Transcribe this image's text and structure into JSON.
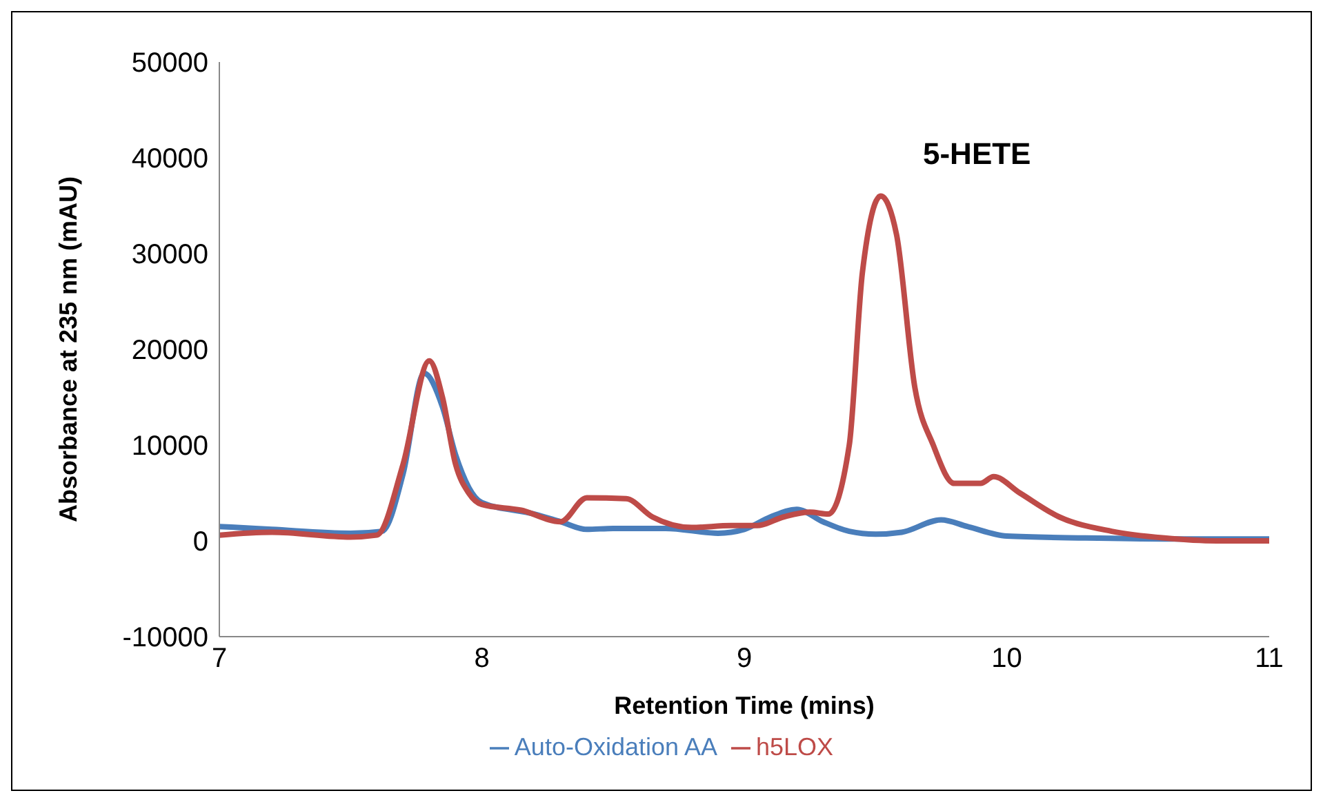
{
  "chart_data": {
    "type": "line",
    "xlabel": "Retention Time (mins)",
    "ylabel": "Absorbance at 235 nm (mAU)",
    "xlim": [
      7,
      11
    ],
    "xticks": [
      7,
      8,
      9,
      10,
      11
    ],
    "ylim": [
      -10000,
      50000
    ],
    "yticks": [
      -10000,
      0,
      10000,
      20000,
      30000,
      40000,
      50000
    ],
    "grid": false,
    "legend": "bottom",
    "marker": "none",
    "line_style": "solid",
    "annotations": [
      "5-HETE"
    ],
    "series": [
      {
        "name": "Auto-Oxidation AA",
        "color": "#4a7ebb",
        "x": [
          7,
          7.2,
          7.5,
          7.62,
          7.7,
          7.78,
          7.85,
          7.9,
          8,
          8.2,
          8.3,
          8.4,
          8.5,
          8.7,
          8.9,
          9,
          9.1,
          9.2,
          9.3,
          9.4,
          9.5,
          9.6,
          9.75,
          9.85,
          10,
          10.3,
          10.6,
          11
        ],
        "values": [
          1500,
          1200,
          800,
          1000,
          7000,
          17500,
          14000,
          9000,
          4000,
          2800,
          2000,
          1200,
          1300,
          1300,
          800,
          1200,
          2500,
          3300,
          2000,
          1000,
          700,
          900,
          2200,
          1500,
          500,
          300,
          200,
          200
        ]
      },
      {
        "name": "h5LOX",
        "color": "#be4b48",
        "x": [
          7,
          7.2,
          7.5,
          7.6,
          7.7,
          7.8,
          7.85,
          7.9,
          7.95,
          8,
          8.15,
          8.3,
          8.4,
          8.55,
          8.65,
          8.8,
          8.95,
          9.05,
          9.15,
          9.25,
          9.32,
          9.4,
          9.45,
          9.52,
          9.58,
          9.65,
          9.72,
          9.8,
          9.9,
          9.95,
          10.05,
          10.2,
          10.4,
          10.6,
          10.8,
          11
        ],
        "values": [
          600,
          900,
          400,
          600,
          8000,
          18800,
          15000,
          8000,
          5000,
          3800,
          3200,
          2000,
          4500,
          4400,
          2500,
          1400,
          1600,
          1600,
          2500,
          3000,
          2800,
          10000,
          28000,
          36000,
          32000,
          16000,
          10000,
          6000,
          6000,
          6700,
          5000,
          2500,
          1000,
          300,
          0,
          0
        ]
      }
    ]
  }
}
